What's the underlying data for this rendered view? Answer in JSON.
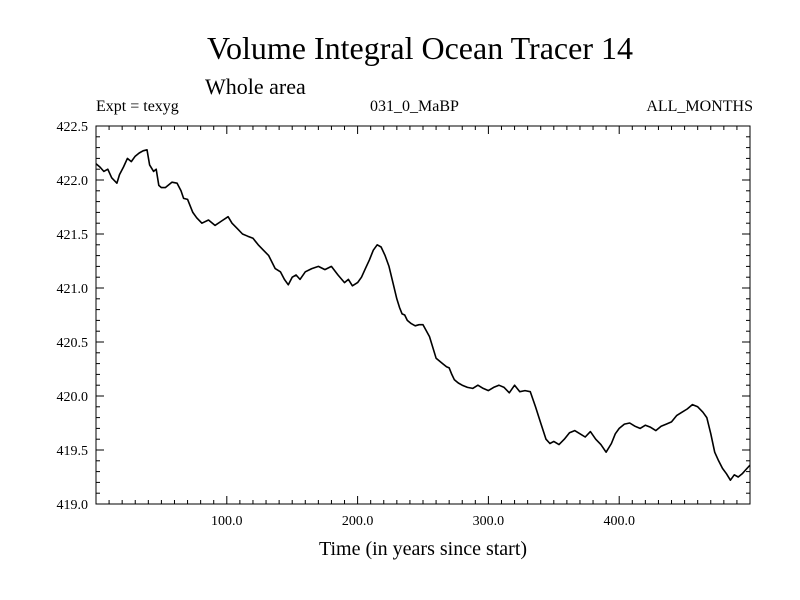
{
  "chart_data": {
    "type": "line",
    "title": "Volume Integral Ocean Tracer 14",
    "subtitle": "Whole area",
    "header_left": "Expt = texyg",
    "header_center": "031_0_MaBP",
    "header_right": "ALL_MONTHS",
    "xlabel": "Time (in years since start)",
    "ylabel": "",
    "xlim": [
      0,
      500
    ],
    "ylim": [
      419.0,
      422.5
    ],
    "xticks": [
      100,
      200,
      300,
      400
    ],
    "xtick_labels": [
      "100.0",
      "200.0",
      "300.0",
      "400.0"
    ],
    "yticks": [
      419.0,
      419.5,
      420.0,
      420.5,
      421.0,
      421.5,
      422.0,
      422.5
    ],
    "ytick_labels": [
      "419.0",
      "419.5",
      "420.0",
      "420.5",
      "421.0",
      "421.5",
      "422.0",
      "422.5"
    ],
    "grid": false,
    "line_color": "#000000",
    "series": [
      {
        "x": [
          0,
          3,
          6,
          9,
          12,
          16,
          18,
          21,
          24,
          27,
          30,
          33,
          36,
          39,
          41,
          44,
          46,
          48,
          50,
          53,
          58,
          62,
          65,
          67,
          70,
          74,
          77,
          81,
          86,
          91,
          96,
          101,
          104,
          108,
          112,
          116,
          120,
          124,
          128,
          132,
          137,
          141,
          144,
          147,
          150,
          153,
          156,
          160,
          165,
          170,
          175,
          180,
          185,
          190,
          193,
          196,
          200,
          203,
          206,
          209,
          212,
          215,
          218,
          221,
          224,
          227,
          230,
          232,
          234,
          236,
          238,
          241,
          244,
          247,
          250,
          255,
          260,
          265,
          268,
          270,
          272,
          274,
          277,
          280,
          284,
          288,
          292,
          296,
          300,
          304,
          308,
          312,
          316,
          320,
          324,
          328,
          332,
          336,
          340,
          344,
          347,
          350,
          354,
          358,
          362,
          366,
          370,
          374,
          378,
          382,
          386,
          390,
          394,
          397,
          400,
          404,
          408,
          412,
          416,
          420,
          424,
          428,
          432,
          436,
          440,
          444,
          448,
          452,
          456,
          460,
          464,
          467,
          470,
          473,
          476,
          479,
          482,
          485,
          488,
          491,
          494,
          497,
          500
        ],
        "y": [
          422.15,
          422.12,
          422.08,
          422.1,
          422.02,
          421.97,
          422.05,
          422.12,
          422.2,
          422.17,
          422.22,
          422.25,
          422.27,
          422.28,
          422.14,
          422.08,
          422.1,
          421.95,
          421.93,
          421.93,
          421.98,
          421.97,
          421.9,
          421.83,
          421.82,
          421.7,
          421.65,
          421.6,
          421.63,
          421.58,
          421.62,
          421.66,
          421.6,
          421.55,
          421.5,
          421.48,
          421.46,
          421.4,
          421.35,
          421.3,
          421.18,
          421.15,
          421.08,
          421.03,
          421.1,
          421.12,
          421.08,
          421.15,
          421.18,
          421.2,
          421.17,
          421.2,
          421.12,
          421.05,
          421.08,
          421.02,
          421.05,
          421.1,
          421.18,
          421.26,
          421.35,
          421.4,
          421.38,
          421.3,
          421.2,
          421.05,
          420.9,
          420.82,
          420.76,
          420.75,
          420.7,
          420.67,
          420.65,
          420.66,
          420.66,
          420.55,
          420.35,
          420.3,
          420.27,
          420.26,
          420.2,
          420.15,
          420.12,
          420.1,
          420.08,
          420.07,
          420.1,
          420.07,
          420.05,
          420.08,
          420.1,
          420.08,
          420.03,
          420.1,
          420.04,
          420.05,
          420.04,
          419.9,
          419.75,
          419.6,
          419.56,
          419.58,
          419.55,
          419.6,
          419.66,
          419.68,
          419.65,
          419.62,
          419.67,
          419.6,
          419.55,
          419.48,
          419.56,
          419.65,
          419.7,
          419.74,
          419.75,
          419.72,
          419.7,
          419.73,
          419.71,
          419.68,
          419.72,
          419.74,
          419.76,
          419.82,
          419.85,
          419.88,
          419.92,
          419.9,
          419.85,
          419.8,
          419.65,
          419.48,
          419.4,
          419.33,
          419.28,
          419.22,
          419.27,
          419.25,
          419.28,
          419.32,
          419.36
        ]
      }
    ]
  }
}
